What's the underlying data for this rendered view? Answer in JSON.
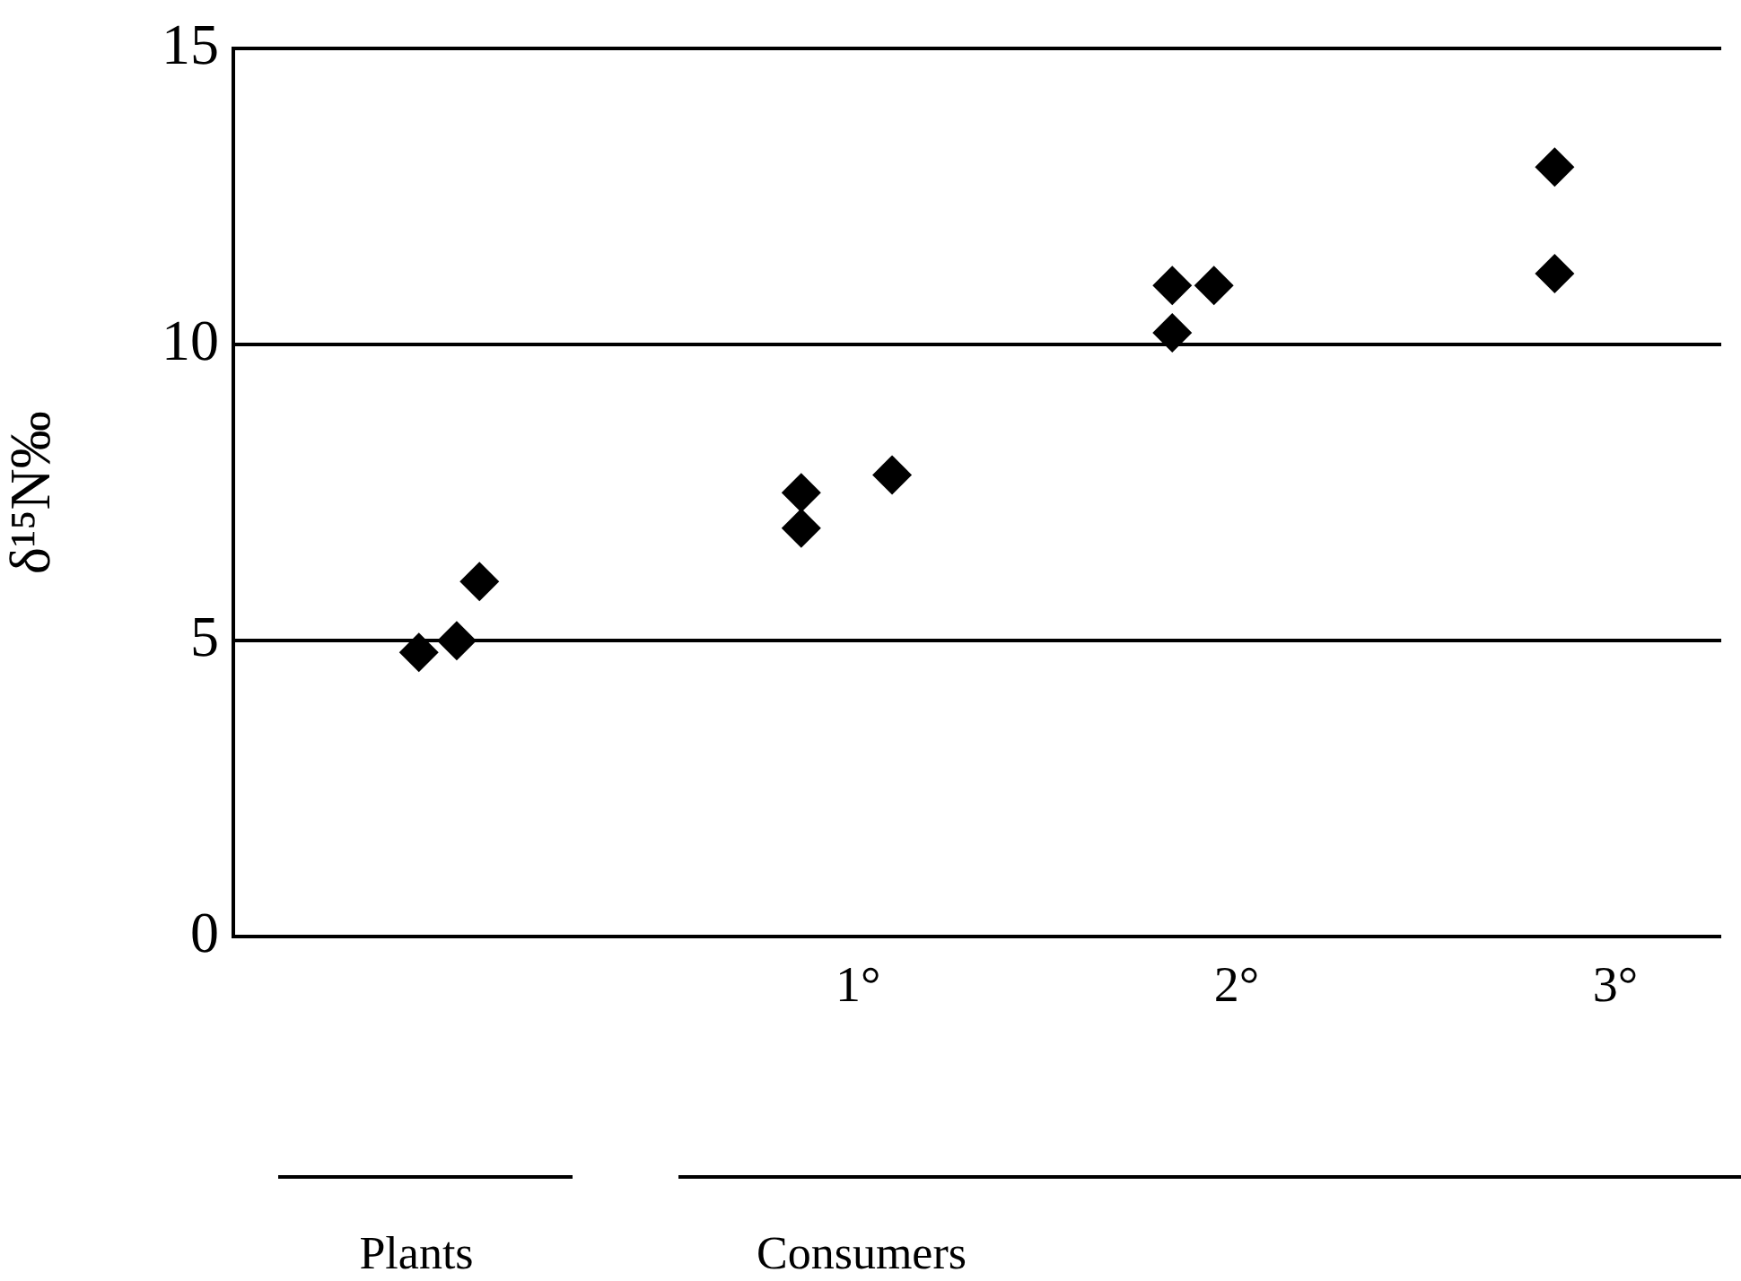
{
  "chart_data": {
    "type": "scatter",
    "ylabel": "δ¹⁵N‰",
    "x": [
      -0.16,
      -0.06,
      0.0,
      0.85,
      0.85,
      1.09,
      1.83,
      1.83,
      1.94,
      2.84,
      2.84
    ],
    "values": [
      4.8,
      5.0,
      6.0,
      6.9,
      7.5,
      7.8,
      10.2,
      11.0,
      11.0,
      13.0,
      11.2
    ],
    "color": "#000000",
    "marker": "diamond",
    "xlim": [
      -0.65,
      3.28
    ],
    "xticks": [
      {
        "value": 1,
        "label": "1°"
      },
      {
        "value": 2,
        "label": "2°"
      },
      {
        "value": 3,
        "label": "3°"
      }
    ],
    "ylim": [
      0,
      15
    ],
    "yticks": [
      0,
      5,
      10,
      15
    ],
    "grid": "y",
    "annotations": [
      "Plants",
      "Consumers"
    ]
  }
}
